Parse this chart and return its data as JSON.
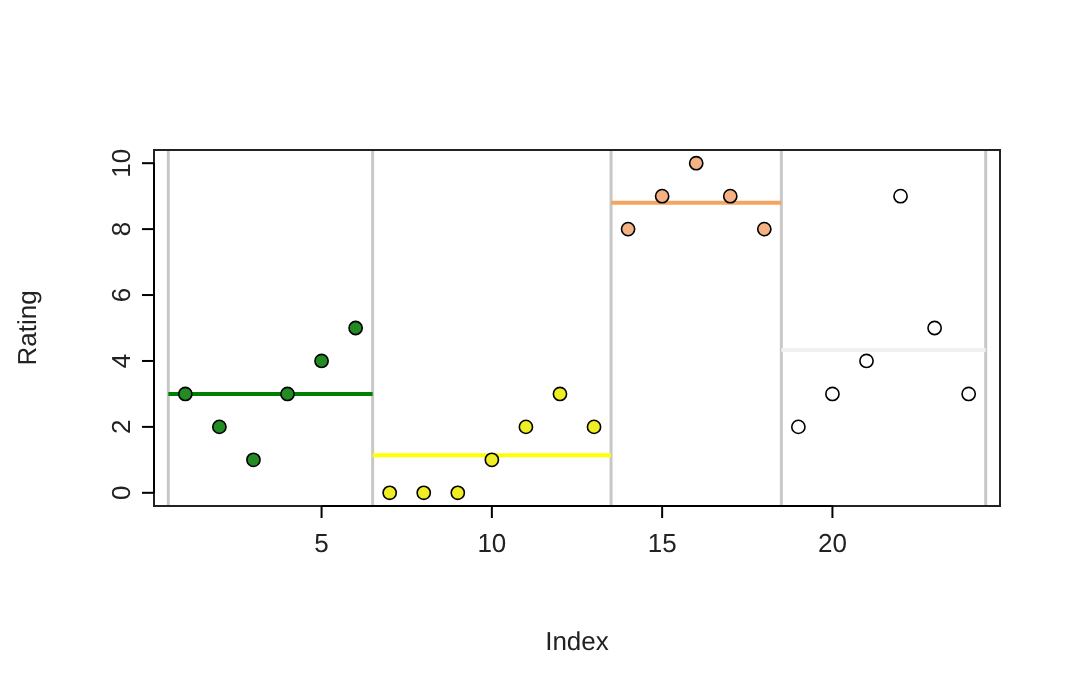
{
  "chart_data": {
    "type": "scatter",
    "xlabel": "Index",
    "ylabel": "Rating",
    "xlim": [
      0.08,
      24.92
    ],
    "ylim": [
      -0.4,
      10.4
    ],
    "xticks": [
      5,
      10,
      15,
      20
    ],
    "yticks": [
      0,
      2,
      4,
      6,
      8,
      10
    ],
    "grid": false,
    "series": [
      {
        "marker": "circle",
        "color": "#228b22",
        "x": [
          1,
          2,
          3,
          4,
          5,
          6
        ],
        "values": [
          3,
          2,
          1,
          3,
          4,
          5
        ]
      },
      {
        "marker": "circle",
        "color": "#eeee22",
        "x": [
          7,
          8,
          9,
          10,
          11,
          12,
          13
        ],
        "values": [
          0,
          0,
          0,
          1,
          2,
          3,
          2
        ]
      },
      {
        "marker": "circle",
        "color": "#f4b183",
        "x": [
          14,
          15,
          16,
          17,
          18
        ],
        "values": [
          8,
          9,
          10,
          9,
          8
        ]
      },
      {
        "marker": "circle",
        "color": "#ffffff",
        "x": [
          19,
          20,
          21,
          22,
          23,
          24
        ],
        "values": [
          2,
          3,
          4,
          9,
          5,
          3
        ]
      },
      {
        "type": "line",
        "marker": "none",
        "color": "#008000",
        "x": [
          0.5,
          6.5
        ],
        "values": [
          3,
          3
        ]
      },
      {
        "type": "line",
        "marker": "none",
        "color": "#ffff00",
        "x": [
          6.5,
          13.5
        ],
        "values": [
          1.14,
          1.14
        ]
      },
      {
        "type": "line",
        "marker": "none",
        "color": "#f4a460",
        "x": [
          13.5,
          18.5
        ],
        "values": [
          8.8,
          8.8
        ]
      },
      {
        "type": "line",
        "marker": "none",
        "color": "#f0f0f0",
        "x": [
          18.5,
          24.5
        ],
        "values": [
          4.33,
          4.33
        ]
      }
    ],
    "ref_lines": [
      {
        "axis": "x",
        "value": 0.5,
        "color": "#c8c8c8"
      },
      {
        "axis": "x",
        "value": 6.5,
        "color": "#c8c8c8"
      },
      {
        "axis": "x",
        "value": 13.5,
        "color": "#c8c8c8"
      },
      {
        "axis": "x",
        "value": 18.5,
        "color": "#c8c8c8"
      },
      {
        "axis": "x",
        "value": 24.5,
        "color": "#c8c8c8"
      }
    ]
  }
}
